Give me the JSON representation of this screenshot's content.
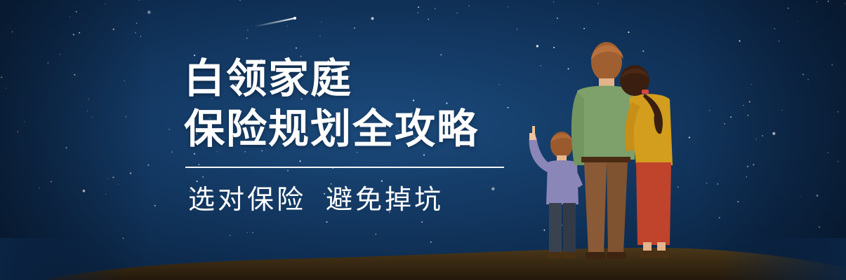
{
  "banner": {
    "title_line1": "白领家庭",
    "title_line2": "保险规划全攻略",
    "subtitle_part1": "选对保险",
    "subtitle_part2": "避免掉坑"
  },
  "colors": {
    "background": "#12365f",
    "text": "#ffffff",
    "ground": "#3b2b14"
  },
  "illustration": {
    "figures": [
      "father",
      "mother",
      "child"
    ],
    "scene": "family-looking-at-starry-sky"
  }
}
